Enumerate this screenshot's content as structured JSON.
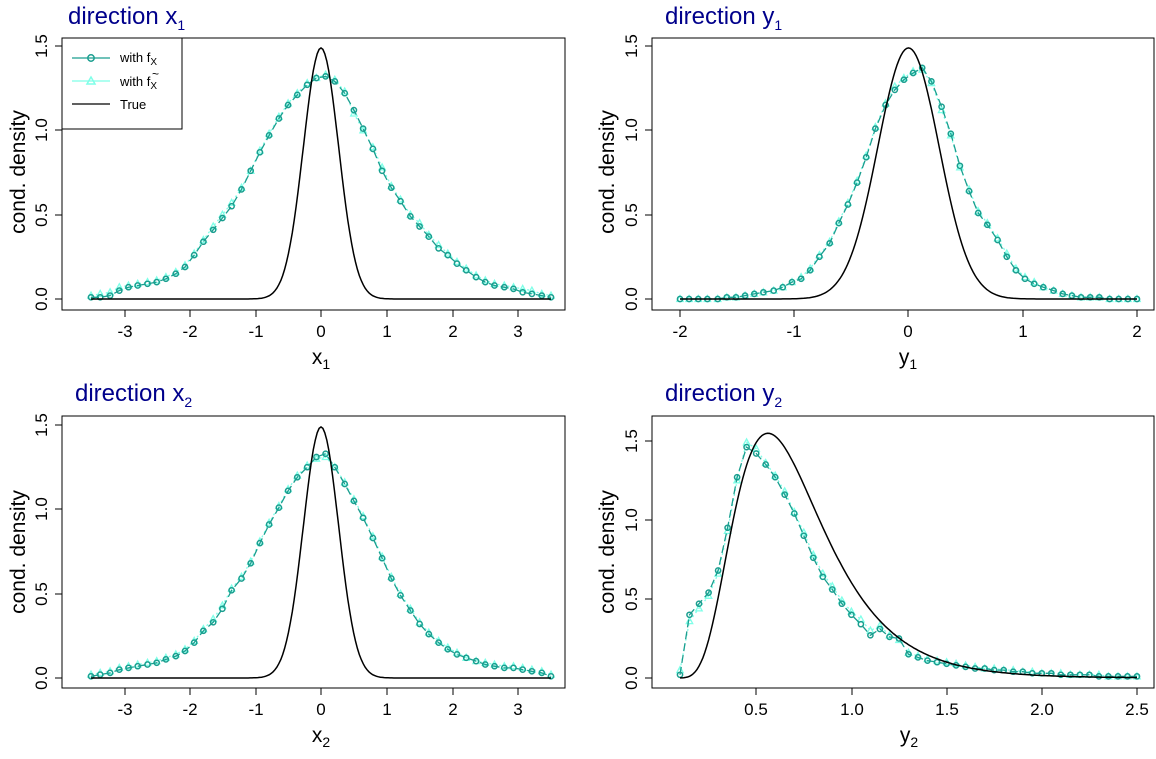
{
  "chart_data": [
    {
      "type": "line",
      "title": "direction x",
      "title_sub": "1",
      "xlabel": "x",
      "xlabel_sub": "1",
      "ylabel": "cond. density",
      "xlim": [
        -3.5,
        3.5
      ],
      "ylim": [
        0,
        1.5
      ],
      "xticks": [
        -3,
        -2,
        -1,
        0,
        1,
        2,
        3
      ],
      "xtick_labels": [
        "-3",
        "-2",
        "-1",
        "0",
        "1",
        "2",
        "3"
      ],
      "yticks": [
        0,
        0.5,
        1,
        1.5
      ],
      "ytick_labels": [
        "0.0",
        "0.5",
        "1.0",
        "1.5"
      ],
      "legend": {
        "position": "top-left",
        "entries": [
          {
            "label": "with f",
            "label_sub": "X",
            "tilde": false
          },
          {
            "label": "with f",
            "label_sub": "X",
            "tilde": true
          },
          {
            "label": "True",
            "label_sub": "",
            "tilde": false
          }
        ]
      },
      "series": [
        {
          "name": "with fX",
          "color": "#1a9e8f",
          "marker": "circle",
          "x": [
            -3.5,
            -3.36,
            -3.21,
            -3.07,
            -2.93,
            -2.79,
            -2.64,
            -2.5,
            -2.36,
            -2.21,
            -2.07,
            -1.93,
            -1.79,
            -1.64,
            -1.5,
            -1.36,
            -1.21,
            -1.07,
            -0.93,
            -0.79,
            -0.64,
            -0.5,
            -0.36,
            -0.21,
            -0.07,
            0.07,
            0.21,
            0.36,
            0.5,
            0.64,
            0.79,
            0.93,
            1.07,
            1.21,
            1.36,
            1.5,
            1.64,
            1.79,
            1.93,
            2.07,
            2.21,
            2.36,
            2.5,
            2.64,
            2.79,
            2.93,
            3.07,
            3.21,
            3.36,
            3.5
          ],
          "y": [
            0.01,
            0.01,
            0.02,
            0.05,
            0.07,
            0.08,
            0.09,
            0.1,
            0.12,
            0.15,
            0.19,
            0.26,
            0.34,
            0.41,
            0.48,
            0.55,
            0.65,
            0.76,
            0.87,
            0.97,
            1.07,
            1.15,
            1.21,
            1.27,
            1.31,
            1.32,
            1.29,
            1.22,
            1.12,
            1.01,
            0.89,
            0.76,
            0.66,
            0.58,
            0.49,
            0.43,
            0.37,
            0.3,
            0.26,
            0.21,
            0.17,
            0.13,
            0.1,
            0.08,
            0.07,
            0.06,
            0.04,
            0.03,
            0.02,
            0.01
          ]
        },
        {
          "name": "with tilde fX",
          "color": "#7fffe8",
          "marker": "triangle",
          "x": [
            -3.5,
            -3.36,
            -3.21,
            -3.07,
            -2.93,
            -2.79,
            -2.64,
            -2.5,
            -2.36,
            -2.21,
            -2.07,
            -1.93,
            -1.79,
            -1.64,
            -1.5,
            -1.36,
            -1.21,
            -1.07,
            -0.93,
            -0.79,
            -0.64,
            -0.5,
            -0.36,
            -0.21,
            -0.07,
            0.07,
            0.21,
            0.36,
            0.5,
            0.64,
            0.79,
            0.93,
            1.07,
            1.21,
            1.36,
            1.5,
            1.64,
            1.79,
            1.93,
            2.07,
            2.21,
            2.36,
            2.5,
            2.64,
            2.79,
            2.93,
            3.07,
            3.21,
            3.36,
            3.5
          ],
          "y": [
            0.02,
            0.03,
            0.04,
            0.07,
            0.08,
            0.09,
            0.1,
            0.11,
            0.13,
            0.16,
            0.2,
            0.27,
            0.35,
            0.43,
            0.5,
            0.57,
            0.66,
            0.76,
            0.88,
            0.98,
            1.08,
            1.16,
            1.22,
            1.28,
            1.31,
            1.33,
            1.3,
            1.23,
            1.1,
            1.0,
            0.9,
            0.78,
            0.67,
            0.59,
            0.5,
            0.45,
            0.38,
            0.32,
            0.27,
            0.22,
            0.18,
            0.14,
            0.11,
            0.09,
            0.08,
            0.07,
            0.06,
            0.05,
            0.03,
            0.02
          ]
        },
        {
          "name": "True",
          "color": "#000000",
          "marker": "none",
          "dist": "normal",
          "params": [
            0,
            0.268
          ]
        }
      ]
    },
    {
      "type": "line",
      "title": "direction y",
      "title_sub": "1",
      "xlabel": "y",
      "xlabel_sub": "1",
      "ylabel": "cond. density",
      "xlim": [
        -2,
        2
      ],
      "ylim": [
        0,
        1.5
      ],
      "xticks": [
        -2,
        -1,
        0,
        1,
        2
      ],
      "xtick_labels": [
        "-2",
        "-1",
        "0",
        "1",
        "2"
      ],
      "yticks": [
        0,
        0.5,
        1,
        1.5
      ],
      "ytick_labels": [
        "0.0",
        "0.5",
        "1.0",
        "1.5"
      ],
      "series": [
        {
          "name": "with fX",
          "color": "#1a9e8f",
          "marker": "circle",
          "x": [
            -2.0,
            -1.92,
            -1.84,
            -1.76,
            -1.67,
            -1.59,
            -1.51,
            -1.43,
            -1.35,
            -1.27,
            -1.18,
            -1.1,
            -1.02,
            -0.94,
            -0.86,
            -0.78,
            -0.69,
            -0.61,
            -0.53,
            -0.45,
            -0.37,
            -0.29,
            -0.2,
            -0.12,
            -0.04,
            0.04,
            0.12,
            0.2,
            0.29,
            0.37,
            0.45,
            0.53,
            0.61,
            0.69,
            0.78,
            0.86,
            0.94,
            1.02,
            1.1,
            1.18,
            1.27,
            1.35,
            1.43,
            1.51,
            1.59,
            1.67,
            1.76,
            1.84,
            1.92,
            2.0
          ],
          "y": [
            0.0,
            0.0,
            0.0,
            0.0,
            0.0,
            0.01,
            0.01,
            0.02,
            0.03,
            0.04,
            0.05,
            0.07,
            0.1,
            0.12,
            0.17,
            0.25,
            0.33,
            0.45,
            0.56,
            0.69,
            0.84,
            1.01,
            1.15,
            1.24,
            1.3,
            1.34,
            1.37,
            1.29,
            1.14,
            0.98,
            0.79,
            0.64,
            0.51,
            0.44,
            0.35,
            0.25,
            0.17,
            0.12,
            0.09,
            0.07,
            0.05,
            0.03,
            0.02,
            0.01,
            0.01,
            0.01,
            0.0,
            0.0,
            0.0,
            0.0
          ]
        },
        {
          "name": "with tilde fX",
          "color": "#7fffe8",
          "marker": "triangle",
          "x": [
            -2.0,
            -1.92,
            -1.84,
            -1.76,
            -1.67,
            -1.59,
            -1.51,
            -1.43,
            -1.35,
            -1.27,
            -1.18,
            -1.1,
            -1.02,
            -0.94,
            -0.86,
            -0.78,
            -0.69,
            -0.61,
            -0.53,
            -0.45,
            -0.37,
            -0.29,
            -0.2,
            -0.12,
            -0.04,
            0.04,
            0.12,
            0.2,
            0.29,
            0.37,
            0.45,
            0.53,
            0.61,
            0.69,
            0.78,
            0.86,
            0.94,
            1.02,
            1.1,
            1.18,
            1.27,
            1.35,
            1.43,
            1.51,
            1.59,
            1.67,
            1.76,
            1.84,
            1.92,
            2.0
          ],
          "y": [
            0.0,
            0.0,
            0.0,
            0.0,
            0.0,
            0.01,
            0.01,
            0.02,
            0.03,
            0.04,
            0.05,
            0.07,
            0.1,
            0.13,
            0.18,
            0.26,
            0.34,
            0.46,
            0.57,
            0.7,
            0.85,
            1.02,
            1.16,
            1.26,
            1.31,
            1.35,
            1.36,
            1.28,
            1.12,
            0.97,
            0.78,
            0.65,
            0.52,
            0.45,
            0.36,
            0.27,
            0.18,
            0.13,
            0.1,
            0.07,
            0.05,
            0.03,
            0.02,
            0.01,
            0.01,
            0.01,
            0.0,
            0.0,
            0.0,
            0.0
          ]
        },
        {
          "name": "True",
          "color": "#000000",
          "marker": "none",
          "dist": "normal",
          "params": [
            0,
            0.268
          ]
        }
      ]
    },
    {
      "type": "line",
      "title": "direction x",
      "title_sub": "2",
      "xlabel": "x",
      "xlabel_sub": "2",
      "ylabel": "cond. density",
      "xlim": [
        -3.5,
        3.5
      ],
      "ylim": [
        0,
        1.5
      ],
      "xticks": [
        -3,
        -2,
        -1,
        0,
        1,
        2,
        3
      ],
      "xtick_labels": [
        "-3",
        "-2",
        "-1",
        "0",
        "1",
        "2",
        "3"
      ],
      "yticks": [
        0,
        0.5,
        1,
        1.5
      ],
      "ytick_labels": [
        "0.0",
        "0.5",
        "1.0",
        "1.5"
      ],
      "series": [
        {
          "name": "with fX",
          "color": "#1a9e8f",
          "marker": "circle",
          "x": [
            -3.5,
            -3.36,
            -3.21,
            -3.07,
            -2.93,
            -2.79,
            -2.64,
            -2.5,
            -2.36,
            -2.21,
            -2.07,
            -1.93,
            -1.79,
            -1.64,
            -1.5,
            -1.36,
            -1.21,
            -1.07,
            -0.93,
            -0.79,
            -0.64,
            -0.5,
            -0.36,
            -0.21,
            -0.07,
            0.07,
            0.21,
            0.36,
            0.5,
            0.64,
            0.79,
            0.93,
            1.07,
            1.21,
            1.36,
            1.5,
            1.64,
            1.79,
            1.93,
            2.07,
            2.21,
            2.36,
            2.5,
            2.64,
            2.79,
            2.93,
            3.07,
            3.21,
            3.36,
            3.5
          ],
          "y": [
            0.01,
            0.02,
            0.03,
            0.05,
            0.06,
            0.07,
            0.08,
            0.09,
            0.11,
            0.13,
            0.16,
            0.21,
            0.28,
            0.33,
            0.41,
            0.52,
            0.59,
            0.68,
            0.8,
            0.91,
            1.01,
            1.11,
            1.19,
            1.25,
            1.31,
            1.33,
            1.25,
            1.15,
            1.05,
            0.95,
            0.83,
            0.71,
            0.59,
            0.49,
            0.4,
            0.32,
            0.26,
            0.21,
            0.17,
            0.14,
            0.12,
            0.1,
            0.08,
            0.07,
            0.06,
            0.06,
            0.05,
            0.04,
            0.03,
            0.01
          ]
        },
        {
          "name": "with tilde fX",
          "color": "#7fffe8",
          "marker": "triangle",
          "x": [
            -3.5,
            -3.36,
            -3.21,
            -3.07,
            -2.93,
            -2.79,
            -2.64,
            -2.5,
            -2.36,
            -2.21,
            -2.07,
            -1.93,
            -1.79,
            -1.64,
            -1.5,
            -1.36,
            -1.21,
            -1.07,
            -0.93,
            -0.79,
            -0.64,
            -0.5,
            -0.36,
            -0.21,
            -0.07,
            0.07,
            0.21,
            0.36,
            0.5,
            0.64,
            0.79,
            0.93,
            1.07,
            1.21,
            1.36,
            1.5,
            1.64,
            1.79,
            1.93,
            2.07,
            2.21,
            2.36,
            2.5,
            2.64,
            2.79,
            2.93,
            3.07,
            3.21,
            3.36,
            3.5
          ],
          "y": [
            0.02,
            0.03,
            0.04,
            0.06,
            0.07,
            0.08,
            0.09,
            0.1,
            0.12,
            0.14,
            0.17,
            0.22,
            0.29,
            0.35,
            0.43,
            0.53,
            0.6,
            0.69,
            0.81,
            0.92,
            1.02,
            1.12,
            1.2,
            1.26,
            1.3,
            1.31,
            1.25,
            1.16,
            1.06,
            0.96,
            0.84,
            0.72,
            0.6,
            0.5,
            0.41,
            0.33,
            0.27,
            0.22,
            0.18,
            0.15,
            0.12,
            0.1,
            0.09,
            0.08,
            0.07,
            0.07,
            0.06,
            0.05,
            0.04,
            0.02
          ]
        },
        {
          "name": "True",
          "color": "#000000",
          "marker": "none",
          "dist": "normal",
          "params": [
            0,
            0.268
          ]
        }
      ]
    },
    {
      "type": "line",
      "title": "direction y",
      "title_sub": "2",
      "xlabel": "y",
      "xlabel_sub": "2",
      "ylabel": "cond. density",
      "xlim": [
        0.1,
        2.5
      ],
      "ylim": [
        0,
        1.6
      ],
      "xticks": [
        0.5,
        1.0,
        1.5,
        2.0,
        2.5
      ],
      "xtick_labels": [
        "0.5",
        "1.0",
        "1.5",
        "2.0",
        "2.5"
      ],
      "yticks": [
        0,
        0.5,
        1,
        1.5
      ],
      "ytick_labels": [
        "0.0",
        "0.5",
        "1.0",
        "1.5"
      ],
      "series": [
        {
          "name": "with fX",
          "color": "#1a9e8f",
          "marker": "circle",
          "x": [
            0.1,
            0.15,
            0.2,
            0.25,
            0.3,
            0.35,
            0.4,
            0.45,
            0.5,
            0.55,
            0.6,
            0.65,
            0.7,
            0.75,
            0.8,
            0.85,
            0.9,
            0.95,
            1.0,
            1.05,
            1.1,
            1.15,
            1.2,
            1.25,
            1.3,
            1.35,
            1.4,
            1.45,
            1.5,
            1.55,
            1.6,
            1.65,
            1.7,
            1.75,
            1.8,
            1.85,
            1.9,
            1.95,
            2.0,
            2.05,
            2.1,
            2.15,
            2.2,
            2.25,
            2.3,
            2.35,
            2.4,
            2.45,
            2.5
          ],
          "y": [
            0.02,
            0.4,
            0.47,
            0.54,
            0.68,
            0.95,
            1.27,
            1.46,
            1.42,
            1.35,
            1.27,
            1.16,
            1.04,
            0.9,
            0.76,
            0.64,
            0.56,
            0.47,
            0.4,
            0.34,
            0.27,
            0.31,
            0.26,
            0.25,
            0.15,
            0.13,
            0.11,
            0.1,
            0.09,
            0.08,
            0.07,
            0.06,
            0.06,
            0.05,
            0.05,
            0.04,
            0.04,
            0.03,
            0.03,
            0.03,
            0.02,
            0.02,
            0.02,
            0.02,
            0.01,
            0.01,
            0.01,
            0.01,
            0.01
          ]
        },
        {
          "name": "with tilde fX",
          "color": "#7fffe8",
          "marker": "triangle",
          "x": [
            0.1,
            0.15,
            0.2,
            0.25,
            0.3,
            0.35,
            0.4,
            0.45,
            0.5,
            0.55,
            0.6,
            0.65,
            0.7,
            0.75,
            0.8,
            0.85,
            0.9,
            0.95,
            1.0,
            1.05,
            1.1,
            1.15,
            1.2,
            1.25,
            1.3,
            1.35,
            1.4,
            1.45,
            1.5,
            1.55,
            1.6,
            1.65,
            1.7,
            1.75,
            1.8,
            1.85,
            1.9,
            1.95,
            2.0,
            2.05,
            2.1,
            2.15,
            2.2,
            2.25,
            2.3,
            2.35,
            2.4,
            2.45,
            2.5
          ],
          "y": [
            0.05,
            0.36,
            0.44,
            0.52,
            0.66,
            0.93,
            1.25,
            1.49,
            1.45,
            1.36,
            1.28,
            1.18,
            1.05,
            0.92,
            0.78,
            0.66,
            0.58,
            0.49,
            0.42,
            0.37,
            0.3,
            0.33,
            0.27,
            0.24,
            0.16,
            0.14,
            0.12,
            0.11,
            0.1,
            0.09,
            0.08,
            0.07,
            0.06,
            0.06,
            0.05,
            0.05,
            0.04,
            0.04,
            0.03,
            0.03,
            0.03,
            0.02,
            0.02,
            0.02,
            0.02,
            0.01,
            0.01,
            0.01,
            0.01
          ]
        },
        {
          "name": "True",
          "color": "#000000",
          "marker": "none",
          "dist": "lognormal",
          "params": [
            -0.4,
            0.42
          ]
        }
      ]
    }
  ]
}
